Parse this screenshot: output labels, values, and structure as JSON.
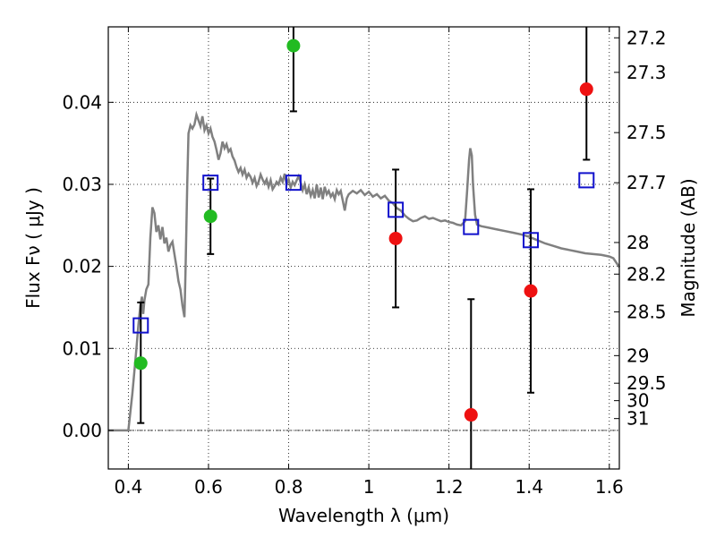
{
  "chart_data": {
    "type": "scatter",
    "xlabel": "Wavelength  λ (μm)",
    "ylabel": "Flux  Fν  ( μJy )",
    "ylabel_right": "Magnitude (AB)",
    "xlim": [
      0.35,
      1.625
    ],
    "ylim": [
      -0.0047,
      0.0492
    ],
    "x_ticks": [
      {
        "value": 0.4,
        "label": "0.4"
      },
      {
        "value": 0.6,
        "label": "0.6"
      },
      {
        "value": 0.8,
        "label": "0.8"
      },
      {
        "value": 1.0,
        "label": "1"
      },
      {
        "value": 1.2,
        "label": "1.2"
      },
      {
        "value": 1.4,
        "label": "1.4"
      },
      {
        "value": 1.6,
        "label": "1.6"
      }
    ],
    "y_ticks": [
      {
        "value": 0.0,
        "label": "0.00"
      },
      {
        "value": 0.01,
        "label": "0.01"
      },
      {
        "value": 0.02,
        "label": "0.02"
      },
      {
        "value": 0.03,
        "label": "0.03"
      },
      {
        "value": 0.04,
        "label": "0.04"
      }
    ],
    "right_ticks": [
      {
        "mag": 27.2,
        "label": "27.2"
      },
      {
        "mag": 27.3,
        "label": "27.3"
      },
      {
        "mag": 27.5,
        "label": "27.5"
      },
      {
        "mag": 27.7,
        "label": "27.7"
      },
      {
        "mag": 28.0,
        "label": "28"
      },
      {
        "mag": 28.2,
        "label": "28.2"
      },
      {
        "mag": 28.5,
        "label": "28.5"
      },
      {
        "mag": 29.0,
        "label": "29"
      },
      {
        "mag": 29.5,
        "label": "29.5"
      },
      {
        "mag": 30.0,
        "label": "30"
      },
      {
        "mag": 31.0,
        "label": "31"
      }
    ],
    "grid": true,
    "colors": {
      "model": "#808080",
      "green_points": "#22bb22",
      "red_points": "#ee1111",
      "squares": "#1111cc",
      "errorbars": "#000000"
    },
    "model_spectrum": [
      [
        0.35,
        0.0
      ],
      [
        0.4,
        0.0
      ],
      [
        0.41,
        0.0045
      ],
      [
        0.42,
        0.0098
      ],
      [
        0.425,
        0.0128
      ],
      [
        0.43,
        0.0152
      ],
      [
        0.434,
        0.0163
      ],
      [
        0.437,
        0.0142
      ],
      [
        0.44,
        0.0158
      ],
      [
        0.445,
        0.0172
      ],
      [
        0.45,
        0.0178
      ],
      [
        0.455,
        0.0235
      ],
      [
        0.46,
        0.0272
      ],
      [
        0.465,
        0.0265
      ],
      [
        0.47,
        0.0242
      ],
      [
        0.475,
        0.025
      ],
      [
        0.48,
        0.0233
      ],
      [
        0.485,
        0.0248
      ],
      [
        0.49,
        0.0228
      ],
      [
        0.495,
        0.0235
      ],
      [
        0.5,
        0.0218
      ],
      [
        0.505,
        0.0226
      ],
      [
        0.51,
        0.023
      ],
      [
        0.515,
        0.0215
      ],
      [
        0.52,
        0.02
      ],
      [
        0.525,
        0.0182
      ],
      [
        0.53,
        0.0172
      ],
      [
        0.535,
        0.0152
      ],
      [
        0.54,
        0.0138
      ],
      [
        0.543,
        0.02
      ],
      [
        0.547,
        0.03
      ],
      [
        0.55,
        0.0362
      ],
      [
        0.555,
        0.0372
      ],
      [
        0.56,
        0.0368
      ],
      [
        0.565,
        0.0373
      ],
      [
        0.57,
        0.0385
      ],
      [
        0.575,
        0.0378
      ],
      [
        0.58,
        0.0371
      ],
      [
        0.585,
        0.0383
      ],
      [
        0.59,
        0.0366
      ],
      [
        0.595,
        0.0372
      ],
      [
        0.6,
        0.0362
      ],
      [
        0.605,
        0.0368
      ],
      [
        0.61,
        0.0358
      ],
      [
        0.615,
        0.0352
      ],
      [
        0.62,
        0.0342
      ],
      [
        0.625,
        0.033
      ],
      [
        0.63,
        0.0338
      ],
      [
        0.635,
        0.0352
      ],
      [
        0.64,
        0.0344
      ],
      [
        0.645,
        0.0349
      ],
      [
        0.65,
        0.034
      ],
      [
        0.655,
        0.0343
      ],
      [
        0.66,
        0.0334
      ],
      [
        0.665,
        0.0329
      ],
      [
        0.67,
        0.0321
      ],
      [
        0.675,
        0.0315
      ],
      [
        0.68,
        0.032
      ],
      [
        0.685,
        0.0312
      ],
      [
        0.69,
        0.0318
      ],
      [
        0.695,
        0.0308
      ],
      [
        0.7,
        0.0313
      ],
      [
        0.705,
        0.0309
      ],
      [
        0.71,
        0.0302
      ],
      [
        0.715,
        0.0308
      ],
      [
        0.72,
        0.0298
      ],
      [
        0.725,
        0.0303
      ],
      [
        0.73,
        0.0312
      ],
      [
        0.735,
        0.0306
      ],
      [
        0.74,
        0.0301
      ],
      [
        0.745,
        0.0306
      ],
      [
        0.75,
        0.0297
      ],
      [
        0.755,
        0.0305
      ],
      [
        0.76,
        0.0294
      ],
      [
        0.765,
        0.0298
      ],
      [
        0.77,
        0.0303
      ],
      [
        0.775,
        0.03
      ],
      [
        0.78,
        0.0308
      ],
      [
        0.785,
        0.0303
      ],
      [
        0.79,
        0.0313
      ],
      [
        0.795,
        0.03
      ],
      [
        0.8,
        0.0306
      ],
      [
        0.805,
        0.0296
      ],
      [
        0.81,
        0.0303
      ],
      [
        0.815,
        0.0299
      ],
      [
        0.82,
        0.0305
      ],
      [
        0.825,
        0.031
      ],
      [
        0.83,
        0.0302
      ],
      [
        0.835,
        0.0293
      ],
      [
        0.84,
        0.03
      ],
      [
        0.845,
        0.0288
      ],
      [
        0.85,
        0.0296
      ],
      [
        0.855,
        0.0286
      ],
      [
        0.86,
        0.0293
      ],
      [
        0.865,
        0.0283
      ],
      [
        0.87,
        0.03
      ],
      [
        0.875,
        0.0284
      ],
      [
        0.88,
        0.0296
      ],
      [
        0.885,
        0.0282
      ],
      [
        0.89,
        0.0297
      ],
      [
        0.895,
        0.0288
      ],
      [
        0.9,
        0.0292
      ],
      [
        0.905,
        0.0285
      ],
      [
        0.91,
        0.0289
      ],
      [
        0.915,
        0.0282
      ],
      [
        0.92,
        0.0293
      ],
      [
        0.925,
        0.0288
      ],
      [
        0.93,
        0.0292
      ],
      [
        0.935,
        0.028
      ],
      [
        0.94,
        0.0268
      ],
      [
        0.945,
        0.0283
      ],
      [
        0.95,
        0.0288
      ],
      [
        0.96,
        0.0292
      ],
      [
        0.97,
        0.0289
      ],
      [
        0.98,
        0.0293
      ],
      [
        0.99,
        0.0287
      ],
      [
        1.0,
        0.0291
      ],
      [
        1.01,
        0.0285
      ],
      [
        1.02,
        0.0288
      ],
      [
        1.03,
        0.0283
      ],
      [
        1.04,
        0.0286
      ],
      [
        1.05,
        0.028
      ],
      [
        1.06,
        0.0277
      ],
      [
        1.07,
        0.0271
      ],
      [
        1.08,
        0.0268
      ],
      [
        1.09,
        0.0262
      ],
      [
        1.1,
        0.0258
      ],
      [
        1.11,
        0.0255
      ],
      [
        1.12,
        0.0256
      ],
      [
        1.13,
        0.0259
      ],
      [
        1.14,
        0.0261
      ],
      [
        1.15,
        0.0258
      ],
      [
        1.16,
        0.0259
      ],
      [
        1.17,
        0.0257
      ],
      [
        1.18,
        0.0255
      ],
      [
        1.19,
        0.0256
      ],
      [
        1.2,
        0.0254
      ],
      [
        1.21,
        0.0253
      ],
      [
        1.22,
        0.0251
      ],
      [
        1.23,
        0.025
      ],
      [
        1.24,
        0.0255
      ],
      [
        1.245,
        0.029
      ],
      [
        1.25,
        0.033
      ],
      [
        1.253,
        0.0344
      ],
      [
        1.257,
        0.0335
      ],
      [
        1.26,
        0.03
      ],
      [
        1.265,
        0.0263
      ],
      [
        1.27,
        0.0251
      ],
      [
        1.28,
        0.0249
      ],
      [
        1.3,
        0.0247
      ],
      [
        1.32,
        0.0245
      ],
      [
        1.34,
        0.0243
      ],
      [
        1.36,
        0.0241
      ],
      [
        1.38,
        0.0239
      ],
      [
        1.4,
        0.0236
      ],
      [
        1.42,
        0.0232
      ],
      [
        1.44,
        0.0228
      ],
      [
        1.46,
        0.0225
      ],
      [
        1.48,
        0.0222
      ],
      [
        1.5,
        0.022
      ],
      [
        1.52,
        0.0218
      ],
      [
        1.54,
        0.0216
      ],
      [
        1.56,
        0.0215
      ],
      [
        1.58,
        0.0214
      ],
      [
        1.6,
        0.0212
      ],
      [
        1.61,
        0.021
      ],
      [
        1.625,
        0.0199
      ]
    ],
    "green_points": [
      {
        "x": 0.431,
        "y": 0.0082,
        "err": 0.0
      },
      {
        "x": 0.605,
        "y": 0.0261,
        "err": 0.0046
      },
      {
        "x": 0.812,
        "y": 0.0469,
        "err": 0.008
      }
    ],
    "red_points": [
      {
        "x": 1.067,
        "y": 0.0234,
        "err": 0.0084
      },
      {
        "x": 1.255,
        "y": 0.0019,
        "err": 0.0141
      },
      {
        "x": 1.404,
        "y": 0.017,
        "err": 0.0124
      },
      {
        "x": 1.543,
        "y": 0.0416,
        "err": 0.0086
      }
    ],
    "extra_errorbars": [
      {
        "x": 0.431,
        "low": 0.0009,
        "high": 0.0156
      }
    ],
    "model_squares": [
      {
        "x": 0.431,
        "y": 0.0128
      },
      {
        "x": 0.605,
        "y": 0.0302
      },
      {
        "x": 0.812,
        "y": 0.0302
      },
      {
        "x": 1.067,
        "y": 0.0269
      },
      {
        "x": 1.255,
        "y": 0.0248
      },
      {
        "x": 1.404,
        "y": 0.0232
      },
      {
        "x": 1.543,
        "y": 0.0305
      }
    ]
  }
}
